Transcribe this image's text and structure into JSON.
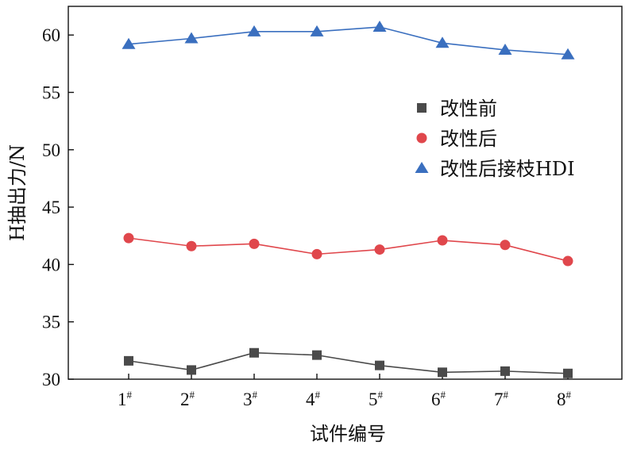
{
  "chart_data": {
    "type": "line",
    "xlabel": "试件编号",
    "ylabel": "H抽出力/N",
    "categories": [
      "1#",
      "2#",
      "3#",
      "4#",
      "5#",
      "6#",
      "7#",
      "8#"
    ],
    "category_labels": [
      {
        "base": "1",
        "sup": "#"
      },
      {
        "base": "2",
        "sup": "#"
      },
      {
        "base": "3",
        "sup": "#"
      },
      {
        "base": "4",
        "sup": "#"
      },
      {
        "base": "5",
        "sup": "#"
      },
      {
        "base": "6",
        "sup": "#"
      },
      {
        "base": "7",
        "sup": "#"
      },
      {
        "base": "8",
        "sup": "#"
      }
    ],
    "ylim": [
      30,
      62.5
    ],
    "yticks": [
      30,
      35,
      40,
      45,
      50,
      55,
      60
    ],
    "grid": false,
    "legend_position": "center-right",
    "series": [
      {
        "name": "改性前",
        "color": "#4a4a4a",
        "marker": "square",
        "values": [
          31.6,
          30.8,
          32.3,
          32.1,
          31.2,
          30.6,
          30.7,
          30.5
        ]
      },
      {
        "name": "改性后",
        "color": "#e0474c",
        "marker": "circle",
        "values": [
          42.3,
          41.6,
          41.8,
          40.9,
          41.3,
          42.1,
          41.7,
          40.3
        ]
      },
      {
        "name": "改性后接枝HDI",
        "color": "#3a6fbf",
        "marker": "triangle",
        "values": [
          59.2,
          59.7,
          60.3,
          60.3,
          60.7,
          59.3,
          58.7,
          58.3
        ]
      }
    ]
  }
}
